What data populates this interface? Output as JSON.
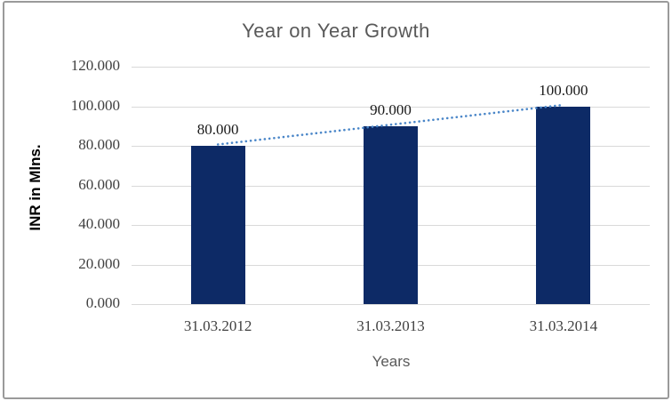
{
  "frame": {
    "border_color": "#9a9a9a",
    "background": "#ffffff"
  },
  "chart_data": {
    "type": "bar",
    "title": "Year on Year Growth",
    "xlabel": "Years",
    "ylabel": "INR in Mlns.",
    "categories": [
      "31.03.2012",
      "31.03.2013",
      "31.03.2014"
    ],
    "values": [
      80,
      90,
      100
    ],
    "value_labels": [
      "80.000",
      "90.000",
      "100.000"
    ],
    "y_ticks": [
      {
        "value": 0,
        "label": "0.000"
      },
      {
        "value": 20,
        "label": "20.000"
      },
      {
        "value": 40,
        "label": "40.000"
      },
      {
        "value": 60,
        "label": "60.000"
      },
      {
        "value": 80,
        "label": "80.000"
      },
      {
        "value": 100,
        "label": "100.000"
      },
      {
        "value": 120,
        "label": "120.000"
      }
    ],
    "ylim": [
      0,
      120
    ],
    "grid": true,
    "legend": "none",
    "trendline": {
      "style": "round-dotted",
      "color": "#4a86c8",
      "from_value": 80,
      "to_value": 100
    },
    "colors": {
      "bar": "#0d2a66",
      "gridline": "#d9d9d9",
      "title": "#595959",
      "tick_label": "#404040",
      "category_label": "#404040",
      "data_label": "#1a1a1a",
      "x_axis_title": "#595959",
      "y_axis_title": "#000000"
    }
  }
}
